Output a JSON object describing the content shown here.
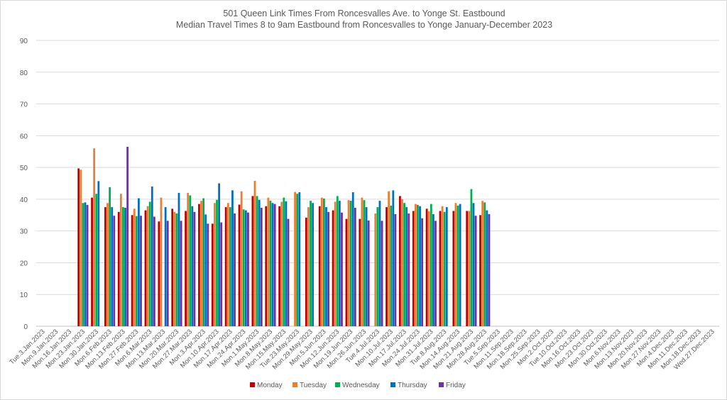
{
  "chart_data": {
    "type": "bar",
    "title": "501 Queen Link Times From Roncesvalles Ave. to Yonge St. Eastbound",
    "subtitle": "Median Travel Times 8 to 9am Eastbound from Roncesvalles to Yonge January-December 2023",
    "xlabel": "",
    "ylabel": "",
    "ylim": [
      0,
      90
    ],
    "yticks": [
      0,
      10,
      20,
      30,
      40,
      50,
      60,
      70,
      80,
      90
    ],
    "grid": "horizontal",
    "legend_position": "bottom",
    "categories": [
      "Tue.3.Jan.2023",
      "Mon.9.Jan.2023",
      "Mon.16.Jan.2023",
      "Mon.23.Jan.2023",
      "Mon.30.Jan.2023",
      "Mon.6.Feb.2023",
      "Mon.13.Feb.2023",
      "Mon.27.Feb.2023",
      "Mon.6.Mar.2023",
      "Mon.13.Mar.2023",
      "Mon.20.Mar.2023",
      "Mon.27.Mar.2023",
      "Mon.3.Apr.2023",
      "Mon.10.Apr.2023",
      "Mon.17.Apr.2023",
      "Mon.24.Apr.2023",
      "Mon.1.May.2023",
      "Mon.8.May.2023",
      "Mon.15.May.2023",
      "Tue.23.May.2023",
      "Mon.29.May.2023",
      "Mon.5.Jun.2023",
      "Mon.12.Jun.2023",
      "Mon.19.Jun.2023",
      "Mon.26.Jun.2023",
      "Tue.4.Jul.2023",
      "Mon.10.Jul.2023",
      "Mon.17.Jul.2023",
      "Mon.24.Jul.2023",
      "Mon.31.Jul.2023",
      "Tue.8.Aug.2023",
      "Mon.14.Aug.2023",
      "Mon.21.Aug.2023",
      "Mon.28.Aug.2023",
      "Tue.5.Sep.2023",
      "Mon.11.Sep.2023",
      "Mon.18.Sep.2023",
      "Mon.25.Sep.2023",
      "Mon.2.Oct.2023",
      "Tue.10.Oct.2023",
      "Mon.16.Oct.2023",
      "Mon.23.Oct.2023",
      "Mon.30.Oct.2023",
      "Mon.6.Nov.2023",
      "Mon.13.Nov.2023",
      "Mon.20.Nov.2023",
      "Mon.27.Nov.2023",
      "Mon.4.Dec.2023",
      "Mon.11.Dec.2023",
      "Mon.18.Dec.2023",
      "Wed.27.Dec.2023"
    ],
    "series": [
      {
        "name": "Monday",
        "color": "#c00000",
        "values": [
          null,
          null,
          null,
          49.7,
          40.5,
          37.5,
          36,
          35,
          36.5,
          33,
          37,
          36.3,
          38.5,
          32.3,
          37.5,
          38.3,
          41,
          37.8,
          37.8,
          null,
          34.2,
          37.8,
          36.5,
          33.8,
          33.8,
          null,
          37.5,
          41,
          36.3,
          37,
          36.3,
          36.3,
          36.3,
          35,
          null,
          null,
          null,
          null,
          null,
          null,
          null,
          null,
          null,
          null,
          null,
          null,
          null,
          null,
          null,
          null,
          null
        ]
      },
      {
        "name": "Tuesday",
        "color": "#ed7d31",
        "values": [
          null,
          null,
          null,
          49.3,
          56,
          38.8,
          41.7,
          37,
          37.8,
          40.5,
          36,
          42,
          39.5,
          38.8,
          38.8,
          42.5,
          45.8,
          40.5,
          39.2,
          42.3,
          37.5,
          40.5,
          39.2,
          39.7,
          40.5,
          35.5,
          42.5,
          40,
          38.5,
          36.2,
          37.8,
          38.8,
          36.3,
          39.5,
          null,
          null,
          null,
          null,
          null,
          null,
          null,
          null,
          null,
          null,
          null,
          null,
          null,
          null,
          null,
          null,
          null
        ]
      },
      {
        "name": "Wednesday",
        "color": "#00b050",
        "values": [
          null,
          null,
          null,
          38.8,
          41.7,
          43.8,
          37.5,
          34.7,
          39.2,
          null,
          35.5,
          41.2,
          40.3,
          39.8,
          37.5,
          36.8,
          41,
          39.5,
          40.5,
          41.7,
          39.5,
          40.2,
          41,
          39.5,
          39.7,
          37.5,
          38,
          38.8,
          38.2,
          38.5,
          36,
          38,
          43.2,
          39,
          null,
          null,
          null,
          null,
          null,
          null,
          null,
          null,
          null,
          null,
          null,
          null,
          null,
          null,
          null,
          null,
          null
        ]
      },
      {
        "name": "Thursday",
        "color": "#0070c0",
        "values": [
          null,
          null,
          null,
          39,
          45.7,
          37.5,
          37.3,
          40.3,
          44,
          37.5,
          42,
          37.8,
          35.2,
          45,
          42.8,
          36.5,
          39.8,
          38.8,
          39.3,
          42.2,
          38.8,
          37.5,
          39.5,
          42.2,
          37.5,
          39.5,
          42.8,
          37.5,
          37.8,
          35.3,
          37.5,
          38.5,
          38.8,
          36.5,
          null,
          null,
          null,
          null,
          null,
          null,
          null,
          null,
          null,
          null,
          null,
          null,
          null,
          null,
          null,
          null,
          null
        ]
      },
      {
        "name": "Friday",
        "color": "#7030a0",
        "values": [
          null,
          null,
          null,
          38.2,
          null,
          34.8,
          56.5,
          34.8,
          34.5,
          33.2,
          33.2,
          36,
          32.3,
          32.7,
          35.5,
          35.8,
          37.3,
          38.5,
          33.8,
          null,
          null,
          36,
          35.8,
          37.3,
          33.3,
          33.2,
          35.3,
          35.5,
          34,
          33.2,
          null,
          null,
          34.8,
          35.3,
          null,
          null,
          null,
          null,
          null,
          null,
          null,
          null,
          null,
          null,
          null,
          null,
          null,
          null,
          null,
          null,
          null
        ]
      }
    ]
  }
}
